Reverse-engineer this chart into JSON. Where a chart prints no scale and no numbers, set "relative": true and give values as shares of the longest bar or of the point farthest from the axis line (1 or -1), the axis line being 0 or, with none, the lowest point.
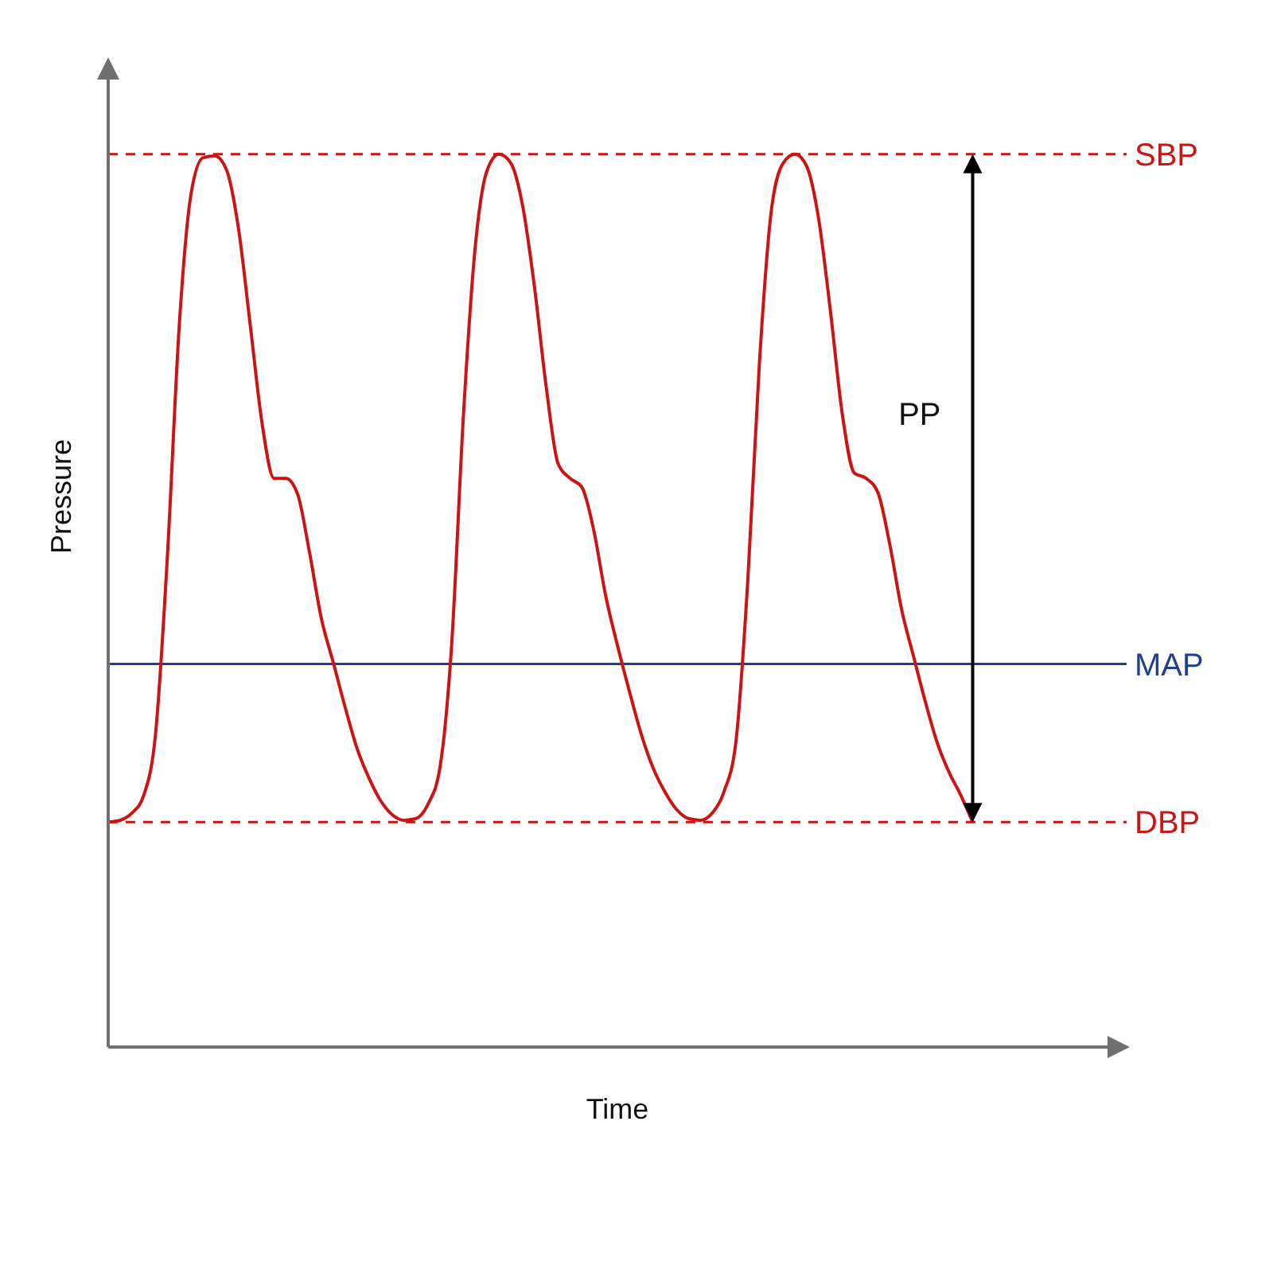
{
  "chart_data": {
    "type": "line",
    "relative": true,
    "xlabel": "Time",
    "ylabel": "Pressure",
    "categories": [
      null,
      null,
      null,
      null,
      null,
      null,
      null,
      null,
      null,
      null,
      null,
      null,
      null,
      null,
      null,
      null,
      null,
      null,
      null,
      null,
      null,
      null,
      null,
      null,
      null,
      null,
      null,
      null,
      null,
      null,
      null,
      null,
      null,
      null,
      null,
      null,
      null,
      null,
      null,
      null,
      null,
      null,
      null,
      null,
      null,
      null,
      null,
      null,
      null,
      null,
      null,
      null,
      null,
      null,
      null,
      null,
      null,
      null,
      null,
      null,
      null,
      null,
      null,
      null,
      null,
      null,
      null,
      null,
      null,
      null,
      null,
      null,
      null,
      null
    ],
    "series": [
      {
        "color": "#cc1414",
        "values": [
          0.252,
          0.254,
          0.262,
          0.282,
          0.351,
          0.55,
          0.808,
          0.956,
          0.996,
          0.998,
          0.982,
          0.917,
          0.808,
          0.698,
          0.637,
          0.637,
          0.619,
          0.554,
          0.48,
          0.431,
          0.381,
          0.335,
          0.302,
          0.276,
          0.26,
          0.254,
          0.256,
          0.272,
          0.312,
          0.45,
          0.708,
          0.897,
          0.982,
          1.0,
          0.99,
          0.942,
          0.851,
          0.738,
          0.653,
          0.637,
          0.627,
          0.579,
          0.506,
          0.45,
          0.399,
          0.351,
          0.313,
          0.286,
          0.266,
          0.256,
          0.254,
          0.262,
          0.286,
          0.341,
          0.52,
          0.768,
          0.937,
          0.99,
          1.0,
          0.986,
          0.927,
          0.823,
          0.708,
          0.643,
          0.637,
          0.621,
          0.563,
          0.49,
          0.438,
          0.387,
          0.341,
          0.308,
          0.282,
          0.252
        ]
      }
    ],
    "ref_lines": [
      {
        "axis": "y",
        "value": 1,
        "label": "SBP",
        "color": "#cc1414",
        "line_style": "dashed"
      },
      {
        "axis": "y",
        "value": 0.429,
        "label": "MAP",
        "color": "#1f3f8f",
        "line_style": "solid"
      },
      {
        "axis": "y",
        "value": 0.252,
        "label": "DBP",
        "color": "#cc1414",
        "line_style": "dashed"
      }
    ],
    "annotations": [
      "PP"
    ]
  }
}
